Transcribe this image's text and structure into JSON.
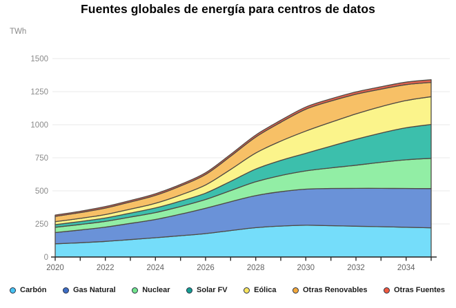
{
  "title": "Fuentes globales de energía para centros de datos",
  "y_axis": {
    "unit_label": "TWh",
    "tick_labels": [
      "0",
      "250",
      "500",
      "750",
      "1000",
      "1250",
      "1500"
    ],
    "tick_values": [
      0,
      250,
      500,
      750,
      1000,
      1250,
      1500
    ],
    "max": 1500
  },
  "x_axis": {
    "tick_labels": [
      "2020",
      "2022",
      "2024",
      "2026",
      "2028",
      "2030",
      "2032",
      "2034"
    ],
    "minor_tick_years": [
      2020,
      2021,
      2022,
      2023,
      2024,
      2025,
      2026,
      2027,
      2028,
      2029,
      2030,
      2031,
      2032,
      2033,
      2034,
      2035
    ]
  },
  "legend": {
    "items": [
      {
        "label": "Carbón",
        "dot_color": "#47C3F2"
      },
      {
        "label": "Gas Natural",
        "dot_color": "#3E6EC6"
      },
      {
        "label": "Nuclear",
        "dot_color": "#74E58C"
      },
      {
        "label": "Solar FV",
        "dot_color": "#169F92"
      },
      {
        "label": "Eólica",
        "dot_color": "#F8E45E"
      },
      {
        "label": "Otras Renovables",
        "dot_color": "#F3A93C"
      },
      {
        "label": "Otras Fuentes",
        "dot_color": "#F15B40"
      }
    ]
  },
  "colors": {
    "band_stroke": "#4F4A44",
    "grid_line": "#e8e8e8",
    "axis_line": "#2b2b2b",
    "y_tick_text": "#8a8a8a",
    "x_tick_text": "#636363",
    "title_text": "#050505"
  },
  "chart_data": {
    "type": "area",
    "stacked": true,
    "title": "Fuentes globales de energía para centros de datos",
    "xlabel": "",
    "ylabel": "TWh",
    "ylim": [
      0,
      1500
    ],
    "xlim": [
      2020,
      2035
    ],
    "grid": "horizontal",
    "legend_position": "bottom",
    "x": [
      2020,
      2021,
      2022,
      2023,
      2024,
      2025,
      2026,
      2027,
      2028,
      2029,
      2030,
      2031,
      2032,
      2033,
      2034,
      2035
    ],
    "series": [
      {
        "name": "Carbón",
        "color": "#75DDFA",
        "values": [
          100,
          108,
          118,
          132,
          146,
          161,
          177,
          200,
          222,
          234,
          240,
          237,
          233,
          229,
          225,
          221
        ]
      },
      {
        "name": "Gas Natural",
        "color": "#6A92D8",
        "values": [
          85,
          96,
          108,
          122,
          138,
          163,
          192,
          218,
          242,
          260,
          273,
          281,
          286,
          290,
          293,
          296
        ]
      },
      {
        "name": "Nuclear",
        "color": "#92EEA5",
        "values": [
          40,
          42,
          44,
          48,
          52,
          58,
          66,
          84,
          105,
          122,
          138,
          156,
          175,
          197,
          217,
          229
        ]
      },
      {
        "name": "Solar FV",
        "color": "#3CBFAC",
        "values": [
          20,
          22,
          25,
          30,
          35,
          41,
          48,
          70,
          96,
          114,
          133,
          164,
          196,
          221,
          242,
          256
        ]
      },
      {
        "name": "Eólica",
        "color": "#FBF48B",
        "values": [
          22,
          24,
          26,
          30,
          35,
          46,
          62,
          90,
          121,
          146,
          168,
          181,
          192,
          200,
          206,
          210
        ]
      },
      {
        "name": "Otras Renovables",
        "color": "#F7C066",
        "values": [
          40,
          44,
          49,
          54,
          60,
          68,
          79,
          100,
          121,
          142,
          165,
          160,
          148,
          132,
          120,
          108
        ]
      },
      {
        "name": "Otras Fuentes",
        "color": "#E0614E",
        "values": [
          10,
          10,
          11,
          11,
          12,
          12,
          13,
          14,
          15,
          16,
          17,
          17,
          18,
          18,
          19,
          20
        ]
      }
    ]
  }
}
